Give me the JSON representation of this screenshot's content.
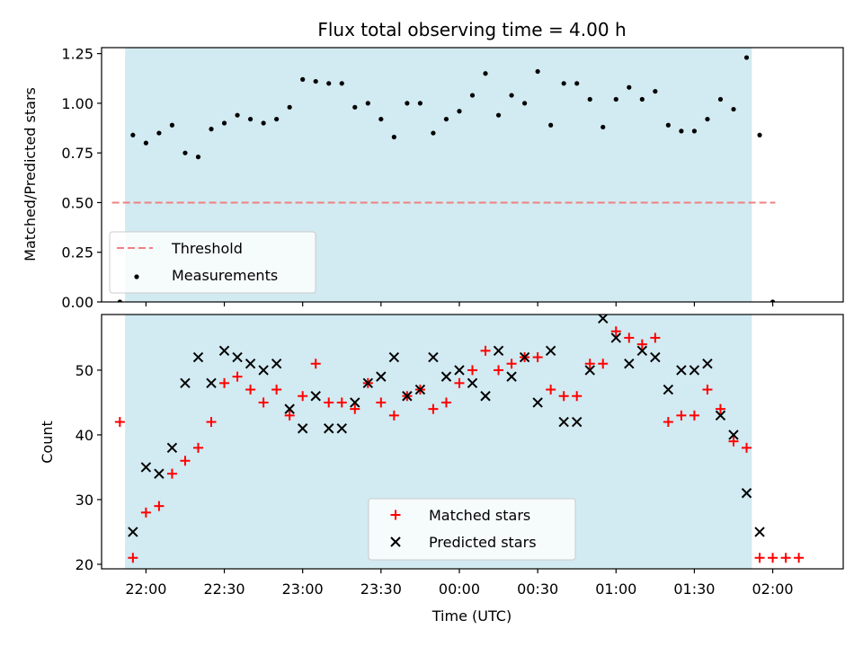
{
  "chart_data": [
    {
      "type": "scatter",
      "title": "Flux total observing time = 4.00 h",
      "xlabel": "",
      "ylabel": "Matched/Predicted stars",
      "ylim": [
        0,
        1.28
      ],
      "yticks": [
        "0.00",
        "0.25",
        "0.50",
        "0.75",
        "1.00",
        "1.25"
      ],
      "ytick_values": [
        0,
        0.25,
        0.5,
        0.75,
        1.0,
        1.25
      ],
      "xlim_min": [
        -17,
        267
      ],
      "observing_window_min": [
        -8,
        232
      ],
      "threshold": {
        "name": "Threshold",
        "value": 0.5,
        "x_min": [
          -13,
          241
        ],
        "color": "#f08080"
      },
      "series": [
        {
          "name": "Measurements",
          "color": "#000000",
          "x_min": [
            -10,
            -5,
            0,
            5,
            10,
            15,
            20,
            25,
            30,
            35,
            40,
            45,
            50,
            55,
            60,
            65,
            70,
            75,
            80,
            85,
            90,
            95,
            100,
            105,
            110,
            115,
            120,
            125,
            130,
            135,
            140,
            145,
            150,
            155,
            160,
            165,
            170,
            175,
            180,
            185,
            190,
            195,
            200,
            205,
            210,
            215,
            220,
            225,
            230,
            235,
            240
          ],
          "y": [
            0.0,
            0.84,
            0.8,
            0.85,
            0.89,
            0.75,
            0.73,
            0.87,
            0.9,
            0.94,
            0.92,
            0.9,
            0.92,
            0.98,
            1.12,
            1.11,
            1.1,
            1.1,
            0.98,
            1.0,
            0.92,
            0.83,
            1.0,
            1.0,
            0.85,
            0.92,
            0.96,
            1.04,
            1.15,
            0.94,
            1.04,
            1.0,
            1.16,
            0.89,
            1.1,
            1.1,
            1.02,
            0.88,
            1.02,
            1.08,
            1.02,
            1.06,
            0.89,
            0.86,
            0.86,
            0.92,
            1.02,
            0.97,
            1.23,
            0.84,
            0.0
          ]
        }
      ],
      "legend_position": "lower left"
    },
    {
      "type": "scatter",
      "title": "",
      "xlabel": "Time (UTC)",
      "ylabel": "Count",
      "ylim": [
        19.3,
        58.6
      ],
      "yticks": [
        "20",
        "30",
        "40",
        "50"
      ],
      "ytick_values": [
        20,
        30,
        40,
        50
      ],
      "xticks": [
        "22:00",
        "22:30",
        "23:00",
        "23:30",
        "00:00",
        "00:30",
        "01:00",
        "01:30",
        "02:00"
      ],
      "xtick_min": [
        0,
        30,
        60,
        90,
        120,
        150,
        180,
        210,
        240
      ],
      "xlim_min": [
        -17,
        267
      ],
      "observing_window_min": [
        -8,
        232
      ],
      "series": [
        {
          "name": "Matched stars",
          "color": "#ff0000",
          "marker": "+",
          "x_min": [
            -10,
            -5,
            0,
            5,
            10,
            15,
            20,
            25,
            30,
            35,
            40,
            45,
            50,
            55,
            60,
            65,
            70,
            75,
            80,
            85,
            90,
            95,
            100,
            105,
            110,
            115,
            120,
            125,
            130,
            135,
            140,
            145,
            150,
            155,
            160,
            165,
            170,
            175,
            180,
            185,
            190,
            195,
            200,
            205,
            210,
            215,
            220,
            225,
            230,
            235,
            240,
            245,
            250
          ],
          "y": [
            42,
            21,
            28,
            29,
            34,
            36,
            38,
            42,
            48,
            49,
            47,
            45,
            47,
            43,
            46,
            51,
            45,
            45,
            44,
            48,
            45,
            43,
            46,
            47,
            44,
            45,
            48,
            50,
            53,
            50,
            51,
            52,
            52,
            47,
            46,
            46,
            51,
            51,
            56,
            55,
            54,
            55,
            42,
            43,
            43,
            47,
            44,
            39,
            38,
            21,
            21,
            21,
            21
          ]
        },
        {
          "name": "Predicted stars",
          "color": "#000000",
          "marker": "x",
          "x_min": [
            -5,
            0,
            5,
            10,
            15,
            20,
            25,
            30,
            35,
            40,
            45,
            50,
            55,
            60,
            65,
            70,
            75,
            80,
            85,
            90,
            95,
            100,
            105,
            110,
            115,
            120,
            125,
            130,
            135,
            140,
            145,
            150,
            155,
            160,
            165,
            170,
            175,
            180,
            185,
            190,
            195,
            200,
            205,
            210,
            215,
            220,
            225,
            230,
            235
          ],
          "y": [
            25,
            35,
            34,
            38,
            48,
            52,
            48,
            53,
            52,
            51,
            50,
            51,
            44,
            41,
            46,
            41,
            41,
            45,
            48,
            49,
            52,
            46,
            47,
            52,
            49,
            50,
            48,
            46,
            53,
            49,
            52,
            45,
            53,
            42,
            42,
            50,
            58,
            55,
            51,
            53,
            52,
            47,
            50,
            50,
            51,
            43,
            40,
            31,
            25
          ]
        }
      ],
      "legend_position": "lower center"
    }
  ]
}
